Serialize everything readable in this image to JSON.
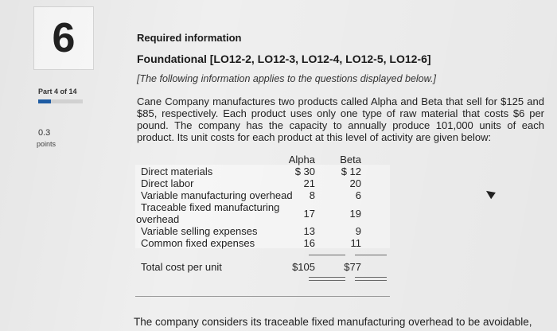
{
  "question_number": "6",
  "sidebar": {
    "part_label": "Part 4 of 14",
    "progress": 0.29,
    "points_value": "0.3",
    "points_label": "points"
  },
  "header": {
    "required_info": "Required information",
    "title": "Foundational [LO12-2, LO12-3, LO12-4, LO12-5, LO12-6]",
    "note": "[The following information applies to the questions displayed below.]"
  },
  "description": "Cane Company manufactures two products called Alpha and Beta that sell for $125 and $85, respectively. Each product uses only one type of raw material that costs $6 per pound. The company has the capacity to annually produce 101,000 units of each product. Its unit costs for each product at this level of activity are given below:",
  "table": {
    "col_alpha": "Alpha",
    "col_beta": "Beta",
    "rows": [
      {
        "label": "Direct materials",
        "alpha": "$ 30",
        "beta": "$ 12"
      },
      {
        "label": "Direct labor",
        "alpha": "21",
        "beta": "20"
      },
      {
        "label": "Variable manufacturing overhead",
        "alpha": "8",
        "beta": "6"
      },
      {
        "label": "Traceable fixed manufacturing",
        "label2": "overhead",
        "alpha": "17",
        "beta": "19"
      },
      {
        "label": "Variable selling expenses",
        "alpha": "13",
        "beta": "9"
      },
      {
        "label": "Common fixed expenses",
        "alpha": "16",
        "beta": "11"
      }
    ],
    "total": {
      "label": "Total cost per unit",
      "alpha": "$105",
      "beta": "$77"
    }
  },
  "continued_text": "The company considers its traceable fixed manufacturing overhead to be avoidable,"
}
